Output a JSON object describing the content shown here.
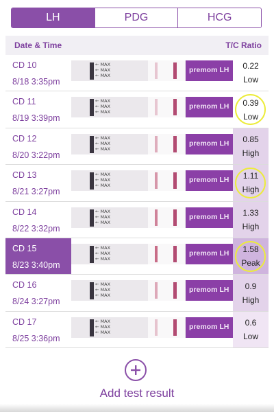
{
  "tabs": [
    {
      "label": "LH",
      "active": true
    },
    {
      "label": "PDG",
      "active": false
    },
    {
      "label": "HCG",
      "active": false
    }
  ],
  "columns": {
    "date_time": "Date & Time",
    "ratio": "T/C Ratio"
  },
  "strip": {
    "arrow_label": "← MAX",
    "brand_text": "premom LH"
  },
  "rows": [
    {
      "cd": "CD 10",
      "datetime": "8/18  3:35pm",
      "ratio": "0.22",
      "level": "Low",
      "selected": false,
      "circled": false
    },
    {
      "cd": "CD 11",
      "datetime": "8/19  3:39pm",
      "ratio": "0.39",
      "level": "Low",
      "selected": false,
      "circled": true
    },
    {
      "cd": "CD 12",
      "datetime": "8/20  3:22pm",
      "ratio": "0.85",
      "level": "High",
      "selected": false,
      "circled": false
    },
    {
      "cd": "CD 13",
      "datetime": "8/21  3:27pm",
      "ratio": "1.11",
      "level": "High",
      "selected": false,
      "circled": true
    },
    {
      "cd": "CD 14",
      "datetime": "8/22  3:32pm",
      "ratio": "1.33",
      "level": "High",
      "selected": false,
      "circled": false
    },
    {
      "cd": "CD 15",
      "datetime": "8/23  3:40pm",
      "ratio": "1.58",
      "level": "Peak",
      "selected": true,
      "circled": true
    },
    {
      "cd": "CD 16",
      "datetime": "8/24  3:27pm",
      "ratio": "0.9",
      "level": "High",
      "selected": false,
      "circled": false
    },
    {
      "cd": "CD 17",
      "datetime": "8/25  3:36pm",
      "ratio": "0.6",
      "level": "Low",
      "selected": false,
      "circled": false
    }
  ],
  "add_button": {
    "icon": "plus-icon",
    "label": "Add test result"
  },
  "colors": {
    "accent": "#8a4fa8",
    "highlight_circle": "#ecec3a"
  }
}
